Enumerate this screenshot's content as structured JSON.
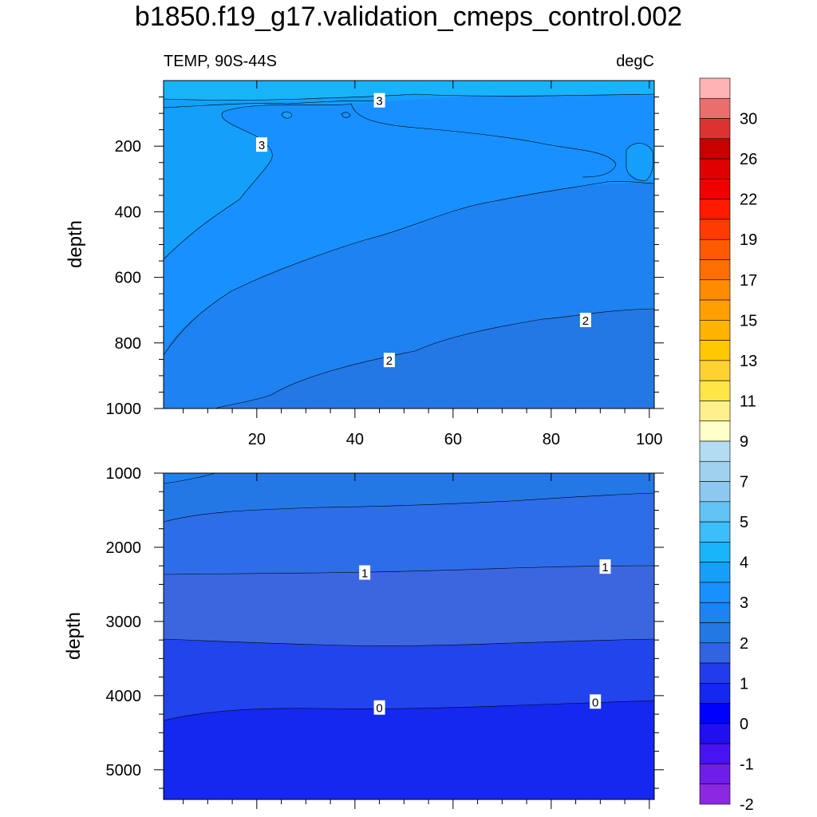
{
  "title": "b1850.f19_g17.validation_cmeps_control.002",
  "chart_data": {
    "type": "contour",
    "left_string": "TEMP, 90S-44S",
    "right_string": "degC",
    "x_tick_labels": [
      "20",
      "40",
      "60",
      "80",
      "100"
    ],
    "x_ticks": [
      20,
      40,
      60,
      80,
      100
    ],
    "x_range": [
      1,
      101
    ],
    "colorbar": {
      "labels": [
        "30",
        "26",
        "22",
        "19",
        "17",
        "15",
        "13",
        "11",
        "9",
        "7",
        "5",
        "4",
        "3",
        "2",
        "1",
        "0",
        "-1",
        "-2"
      ],
      "colors": [
        "#ffb4b4",
        "#eb6e6e",
        "#dc3232",
        "#c80000",
        "#e10000",
        "#f00000",
        "#ff1a00",
        "#ff3c00",
        "#ff5a00",
        "#ff6e00",
        "#ff8c00",
        "#ffa000",
        "#ffb400",
        "#ffc800",
        "#ffd232",
        "#ffe646",
        "#fff08c",
        "#ffffc8",
        "#b4dcf0",
        "#a0d2f0",
        "#8cc8f0",
        "#64c3f5",
        "#3cbef8",
        "#18b4fa",
        "#14a0fa",
        "#1990ff",
        "#1e82f0",
        "#2378e6",
        "#3264e1",
        "#233ceb",
        "#1428f0",
        "#0000ff",
        "#2010f0",
        "#4614f0",
        "#6e1ee6",
        "#8c28e1"
      ]
    },
    "panels": [
      {
        "name": "upper",
        "ylabel": "depth",
        "y_range": [
          0,
          1000
        ],
        "y_ticks": [
          200,
          400,
          600,
          800,
          1000
        ],
        "y_tick_labels": [
          "200",
          "400",
          "600",
          "800",
          "1000"
        ],
        "x_labels_shown": true,
        "bands": [
          {
            "level": "4",
            "color": "#18b4fa"
          },
          {
            "level": "3",
            "color": "#14a0fa"
          },
          {
            "level": "2.5",
            "color": "#1990ff"
          },
          {
            "level": "2",
            "color": "#1e82f0"
          },
          {
            "level": "1.5",
            "color": "#2378e6"
          }
        ],
        "contour_labels": [
          {
            "text": "3",
            "x": 45,
            "y": 60
          },
          {
            "text": "3",
            "x": 21,
            "y": 195
          },
          {
            "text": "2",
            "x": 87,
            "y": 730
          },
          {
            "text": "2",
            "x": 47,
            "y": 852
          }
        ]
      },
      {
        "name": "lower",
        "ylabel": "depth",
        "y_range": [
          1000,
          5400
        ],
        "y_ticks": [
          1000,
          2000,
          3000,
          4000,
          5000
        ],
        "y_tick_labels": [
          "1000",
          "2000",
          "3000",
          "4000",
          "5000"
        ],
        "x_labels_shown": false,
        "bands": [
          {
            "level": "1.5",
            "color": "#2378e6"
          },
          {
            "level": "1",
            "color": "#2e6de8"
          },
          {
            "level": "0.5",
            "color": "#3c66e0"
          },
          {
            "level": "0",
            "color": "#2244ec"
          },
          {
            "level": "-0.5",
            "color": "#1428f0"
          }
        ],
        "contour_labels": [
          {
            "text": "1",
            "x": 42,
            "y": 2340
          },
          {
            "text": "1",
            "x": 91,
            "y": 2260
          },
          {
            "text": "0",
            "x": 45,
            "y": 4160
          },
          {
            "text": "0",
            "x": 89,
            "y": 4080
          }
        ]
      }
    ]
  }
}
